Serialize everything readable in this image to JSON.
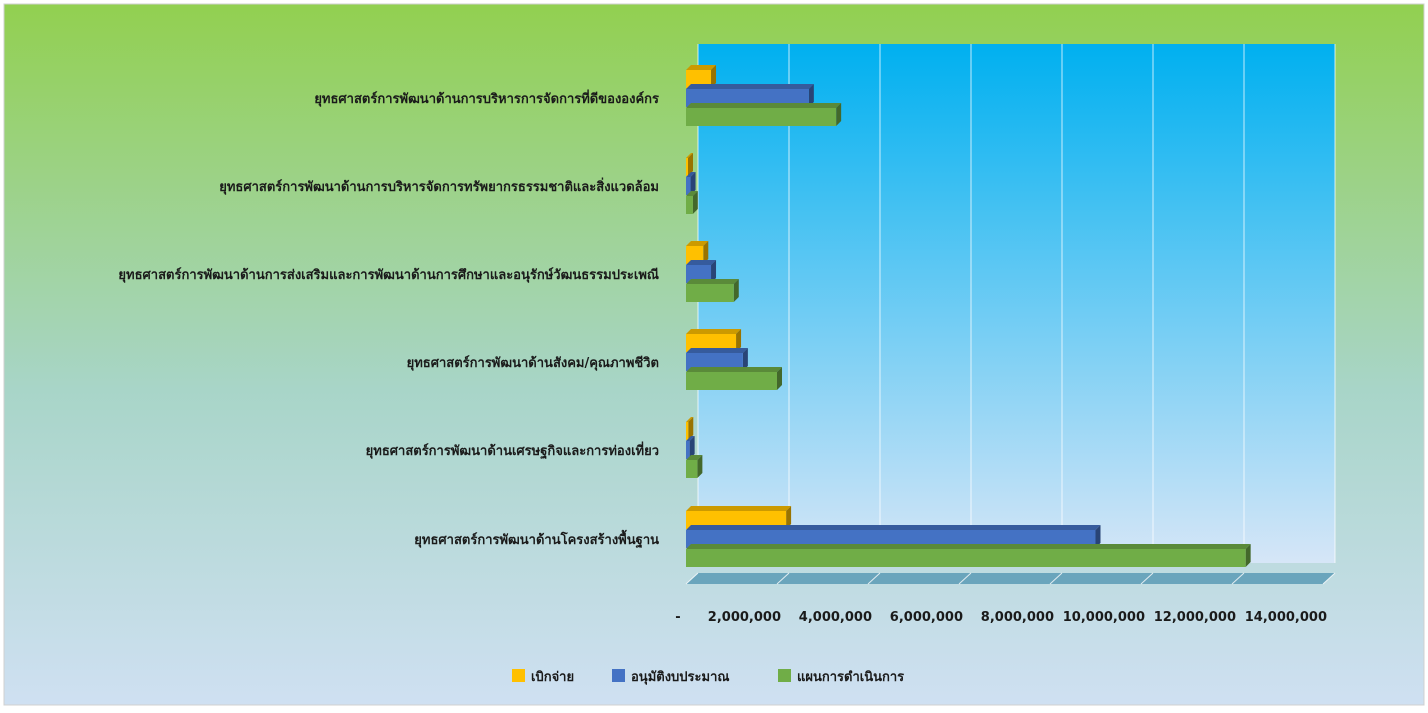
{
  "chart_data": {
    "type": "bar",
    "orientation": "horizontal",
    "style": "3d-clustered",
    "categories": [
      "ยุทธศาสตร์การพัฒนาด้านการบริหารการจัดการที่ดีขององค์กร",
      "ยุทธศาสตร์การพัฒนาด้านการบริหารจัดการทรัพยากรธรรมชาติและสิ่งแวดล้อม",
      "ยุทธศาสตร์การพัฒนาด้านการส่งเสริมและการพัฒนาด้านการศึกษาและอนุรักษ์วัฒนธรรมประเพณี",
      "ยุทธศาสตร์การพัฒนาด้านสังคม/คุณภาพชีวิต",
      "ยุทธศาสตร์การพัฒนาด้านเศรษฐกิจและการท่องเที่ยว",
      "ยุทธศาสตร์การพัฒนาด้านโครงสร้างพื้นฐาน"
    ],
    "series": [
      {
        "name": "เบิกจ่าย",
        "color": "#FFC000",
        "values": [
          550000,
          30000,
          380000,
          1100000,
          50000,
          2200000
        ]
      },
      {
        "name": "อนุมัติงบประมาณ",
        "color": "#4472C4",
        "values": [
          2700000,
          100000,
          550000,
          1250000,
          80000,
          9000000
        ]
      },
      {
        "name": "แผนการดำเนินการ",
        "color": "#70AD47",
        "values": [
          3300000,
          150000,
          1050000,
          2000000,
          250000,
          12300000
        ]
      }
    ],
    "tick_labels": [
      "-",
      "2,000,000",
      "4,000,000",
      "6,000,000",
      "8,000,000",
      "10,000,000",
      "12,000,000",
      "14,000,000"
    ],
    "xlim": [
      0,
      14000000
    ],
    "grid": true,
    "legend_position": "bottom"
  }
}
